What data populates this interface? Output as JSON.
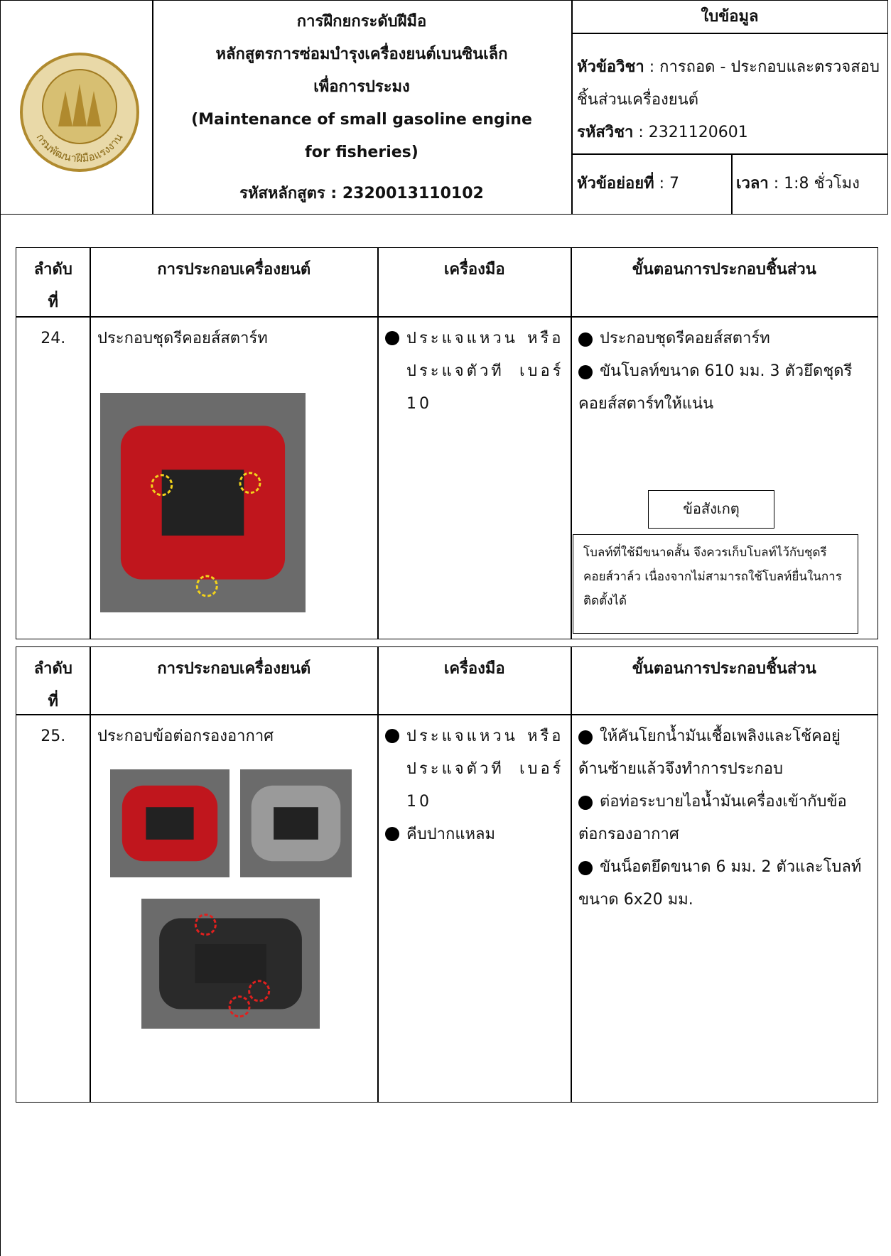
{
  "header": {
    "logo_text": "กรมพัฒนาฝีมือแรงงาน",
    "title_lines": [
      "การฝึกยกระดับฝีมือ",
      "หลักสูตรการซ่อมบำรุงเครื่องยนต์เบนซินเล็ก",
      "เพื่อการประมง",
      "(Maintenance of small gasoline engine",
      "for fisheries)"
    ],
    "course_code": "รหัสหลักสูตร : 2320013110102",
    "sheet_type": "ใบข้อมูล",
    "subject_label": "หัวข้อวิชา",
    "subject_value": " : การถอด - ประกอบและตรวจสอบชิ้นส่วนเครื่องยนต์",
    "code_label": "รหัสวิชา",
    "code_value": " : 2321120601",
    "subtopic_label": "หัวข้อย่อยที่",
    "subtopic_value": " : 7",
    "time_label": "เวลา",
    "time_value": " : 1:8 ชั่วโมง"
  },
  "sections": [
    {
      "header": [
        "ลำดับ ที่",
        "การประกอบเครื่องยนต์",
        "เครื่องมือ",
        "ขั้นตอนการประกอบชิ้นส่วน"
      ],
      "number": "24.",
      "title": "ประกอบชุดรีคอยส์สตาร์ท",
      "tools": [
        "ประแจแหวน หรือ ประแจตัวที เบอร์ 10"
      ],
      "steps": [
        "ประกอบชุดรีคอยส์สตาร์ท",
        "ขันโบลท์ขนาด 610 มม. 3 ตัวยึดชุดรีคอยส์สตาร์ทให้แน่น"
      ],
      "note_title": "ข้อสังเกตุ",
      "note_text": "โบลท์ที่ใช้มีขนาดสั้น จึงควรเก็บโบลท์ไว้กับชุดรีคอยส์วาล์ว เนื่องจากไม่สามารถใช้โบลท์ยื่นในการติดตั้งได้"
    },
    {
      "header": [
        "ลำดับ ที่",
        "การประกอบเครื่องยนต์",
        "เครื่องมือ",
        "ขั้นตอนการประกอบชิ้นส่วน"
      ],
      "number": "25.",
      "title": "ประกอบข้อต่อกรองอากาศ",
      "tools": [
        "ประแจแหวน หรือ ประแจตัวที เบอร์ 10",
        "คีบปากแหลม"
      ],
      "steps": [
        "ให้คันโยกน้ำมันเชื้อเพลิงและโช้คอยู่ด้านซ้ายแล้วจึงทำการประกอบ",
        "ต่อท่อระบายไอน้ำมันเครื่องเข้ากับข้อต่อกรองอากาศ",
        "ขันน็อตยึดขนาด 6 มม. 2 ตัวและโบลท์ขนาด 6x20 มม."
      ]
    }
  ]
}
